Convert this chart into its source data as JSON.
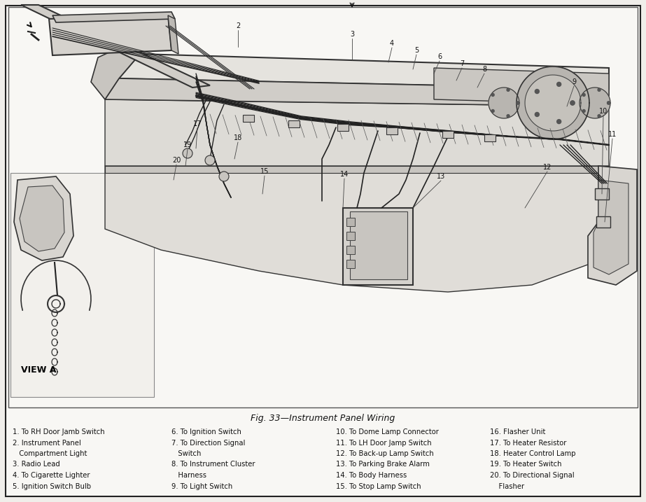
{
  "title": "Fig. 33—Instrument Panel Wiring",
  "background_color": "#f0eeea",
  "page_bg": "#f0eeea",
  "diagram_bg": "#f8f7f4",
  "border_color": "#222222",
  "legend_items_col1": [
    "1. To RH Door Jamb Switch",
    "2. Instrument Panel",
    "   Compartment Light",
    "3. Radio Lead",
    "4. To Cigarette Lighter",
    "5. Ignition Switch Bulb"
  ],
  "legend_items_col2": [
    "6. To Ignition Switch",
    "7. To Direction Signal",
    "   Switch",
    "8. To Instrument Cluster",
    "   Harness",
    "9. To Light Switch"
  ],
  "legend_items_col3": [
    "10. To Dome Lamp Connector",
    "11. To LH Door Jamp Switch",
    "12. To Back-up Lamp Switch",
    "13. To Parking Brake Alarm",
    "14. To Body Harness",
    "15. To Stop Lamp Switch"
  ],
  "legend_items_col4": [
    "16. Flasher Unit",
    "17. To Heater Resistor",
    "18. Heater Control Lamp",
    "19. To Heater Switch",
    "20. To Directional Signal",
    "    Flasher"
  ]
}
